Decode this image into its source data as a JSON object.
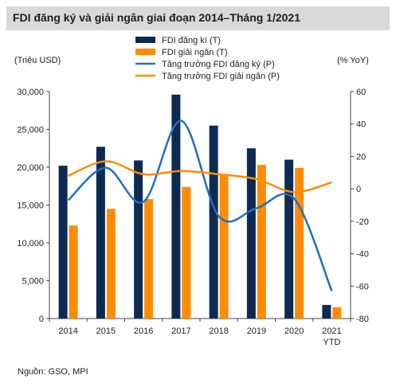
{
  "chart_data": {
    "type": "bar",
    "title": "FDI đăng ký và giải ngân giai đoạn 2014–Tháng 1/2021",
    "categories": [
      {
        "label": "2014",
        "sublabel": ""
      },
      {
        "label": "2015",
        "sublabel": ""
      },
      {
        "label": "2016",
        "sublabel": ""
      },
      {
        "label": "2017",
        "sublabel": ""
      },
      {
        "label": "2018",
        "sublabel": ""
      },
      {
        "label": "2019",
        "sublabel": ""
      },
      {
        "label": "2020",
        "sublabel": ""
      },
      {
        "label": "2021",
        "sublabel": "YTD"
      }
    ],
    "y_left_label": "(Triệu USD)",
    "y_right_label": "(% YoY)",
    "y_left_range": [
      0,
      30000
    ],
    "y_left_ticks": [
      "0",
      "5,000",
      "10,000",
      "15,000",
      "20,000",
      "25,000",
      "30,000"
    ],
    "y_right_range": [
      -80,
      60
    ],
    "y_right_ticks": [
      "-80",
      "-60",
      "-40",
      "-20",
      "0",
      "20",
      "40",
      "60"
    ],
    "grid": false,
    "legend_position": "top",
    "bar_series": [
      {
        "name": "FDI đăng kí (T)",
        "color": "#0d2a52",
        "values": [
          20200,
          22700,
          20900,
          29600,
          25500,
          22500,
          21000,
          1800
        ]
      },
      {
        "name": "FDI giải ngân (T)",
        "color": "#ff8c00",
        "values": [
          12300,
          14500,
          15800,
          17400,
          19100,
          20300,
          19900,
          1500
        ]
      }
    ],
    "line_series": [
      {
        "name": "Tăng trưởng FDI đăng ký (P)",
        "color": "#1f6fc5",
        "values": [
          -7,
          13,
          -8,
          42,
          -17,
          -12,
          -6,
          -63
        ]
      },
      {
        "name": "Tăng trưởng FDI giải ngân (P)",
        "color": "#ff8c00",
        "values": [
          8,
          17,
          9,
          11,
          9,
          6,
          -2,
          4
        ]
      }
    ]
  },
  "footer": {
    "source": "Nguồn: GSO, MPI"
  }
}
